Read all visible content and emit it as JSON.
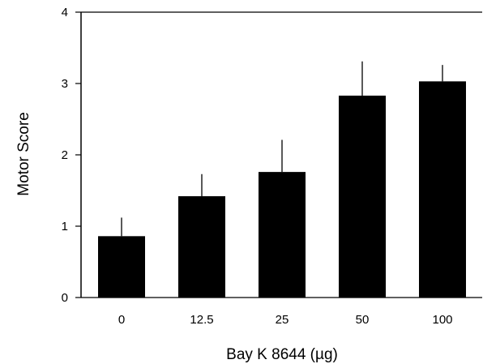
{
  "chart_data": {
    "type": "bar",
    "title": "",
    "xlabel": "Bay K 8644 (µg)",
    "ylabel": "Motor Score",
    "categories": [
      "0",
      "12.5",
      "25",
      "50",
      "100"
    ],
    "values": [
      0.86,
      1.42,
      1.76,
      2.83,
      3.03
    ],
    "error_upper": [
      1.12,
      1.73,
      2.21,
      3.31,
      3.26
    ],
    "ylim": [
      0,
      4
    ],
    "yticks": [
      "0",
      "1",
      "2",
      "3",
      "4"
    ],
    "grid": false,
    "bar_color": "#000000"
  }
}
